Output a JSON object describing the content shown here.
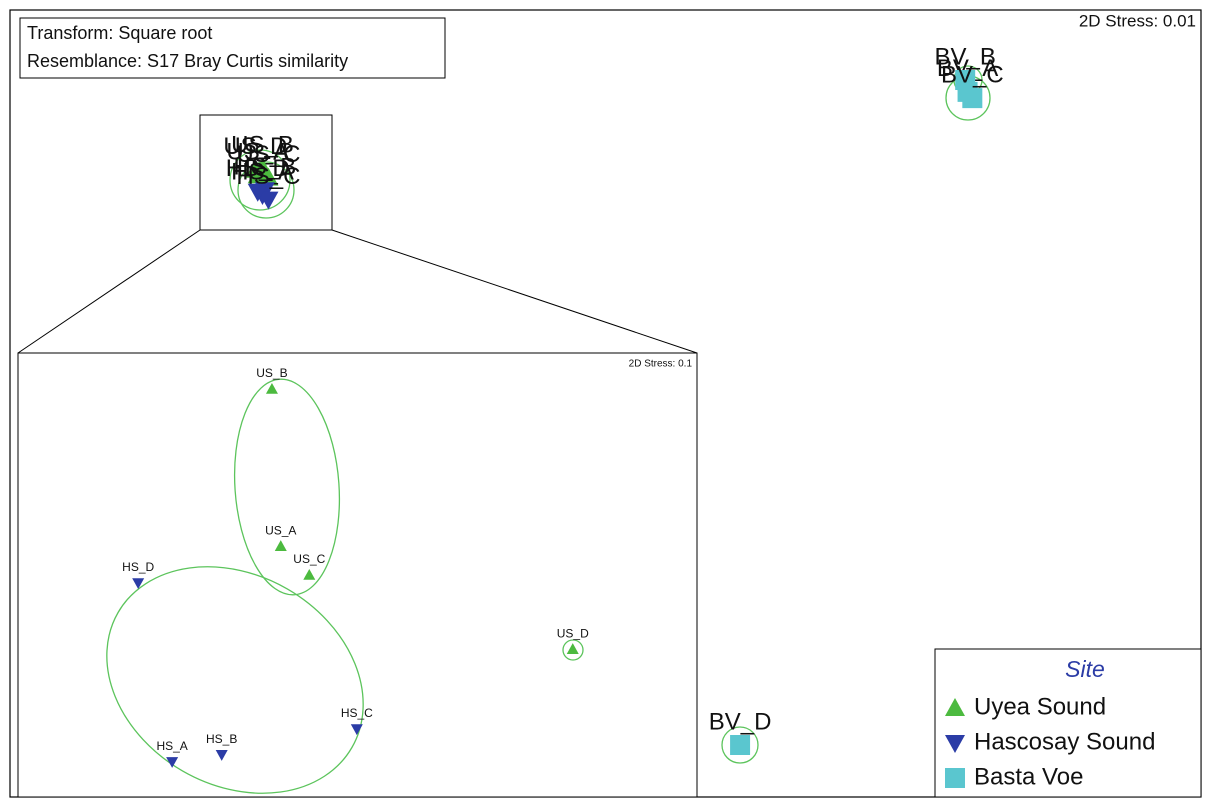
{
  "chart_data": [
    {
      "type": "scatter",
      "annotations": [
        "Transform: Square root",
        "Resemblance: S17 Bray Curtis similarity"
      ],
      "stress": "2D Stress: 0.01",
      "legend_title": "Site",
      "xlim": [
        0,
        100
      ],
      "ylim": [
        0,
        100
      ],
      "series": [
        {
          "name": "Uyea Sound",
          "color": "#4cba3f",
          "marker": "triangle-up",
          "labels": [
            "US_A",
            "US_B",
            "US_C",
            "US_D"
          ],
          "x": [
            20.8,
            21.2,
            21.7,
            20.6
          ],
          "y": [
            79.0,
            79.9,
            78.7,
            79.7
          ]
        },
        {
          "name": "Hascosay Sound",
          "color": "#2b3ca6",
          "marker": "triangle-down",
          "labels": [
            "HS_A",
            "HS_B",
            "HS_C",
            "HS_D"
          ],
          "x": [
            21.2,
            21.4,
            21.7,
            20.8
          ],
          "y": [
            76.5,
            77.1,
            75.9,
            76.9
          ]
        },
        {
          "name": "Basta Voe",
          "color": "#5ac6cf",
          "marker": "square",
          "labels": [
            "BV_A",
            "BV_B",
            "BV_C",
            "BV_D"
          ],
          "x": [
            80.4,
            80.2,
            80.8,
            61.3
          ],
          "y": [
            89.6,
            91.1,
            88.8,
            6.6
          ]
        }
      ]
    },
    {
      "type": "scatter",
      "stress": "2D Stress: 0.1",
      "xlim": [
        0,
        100
      ],
      "ylim": [
        0,
        100
      ],
      "series": [
        {
          "color": "#4cba3f",
          "marker": "triangle-up",
          "labels": [
            "US_B",
            "US_A",
            "US_C",
            "US_D"
          ],
          "x": [
            37.4,
            38.7,
            42.9,
            81.7
          ],
          "y": [
            91.9,
            56.5,
            50.0,
            33.3
          ]
        },
        {
          "color": "#2b3ca6",
          "marker": "triangle-down",
          "labels": [
            "HS_D",
            "HS_C",
            "HS_A",
            "HS_B"
          ],
          "x": [
            17.7,
            49.9,
            22.7,
            30.0
          ],
          "y": [
            48.2,
            15.3,
            7.9,
            9.5
          ]
        }
      ]
    }
  ]
}
